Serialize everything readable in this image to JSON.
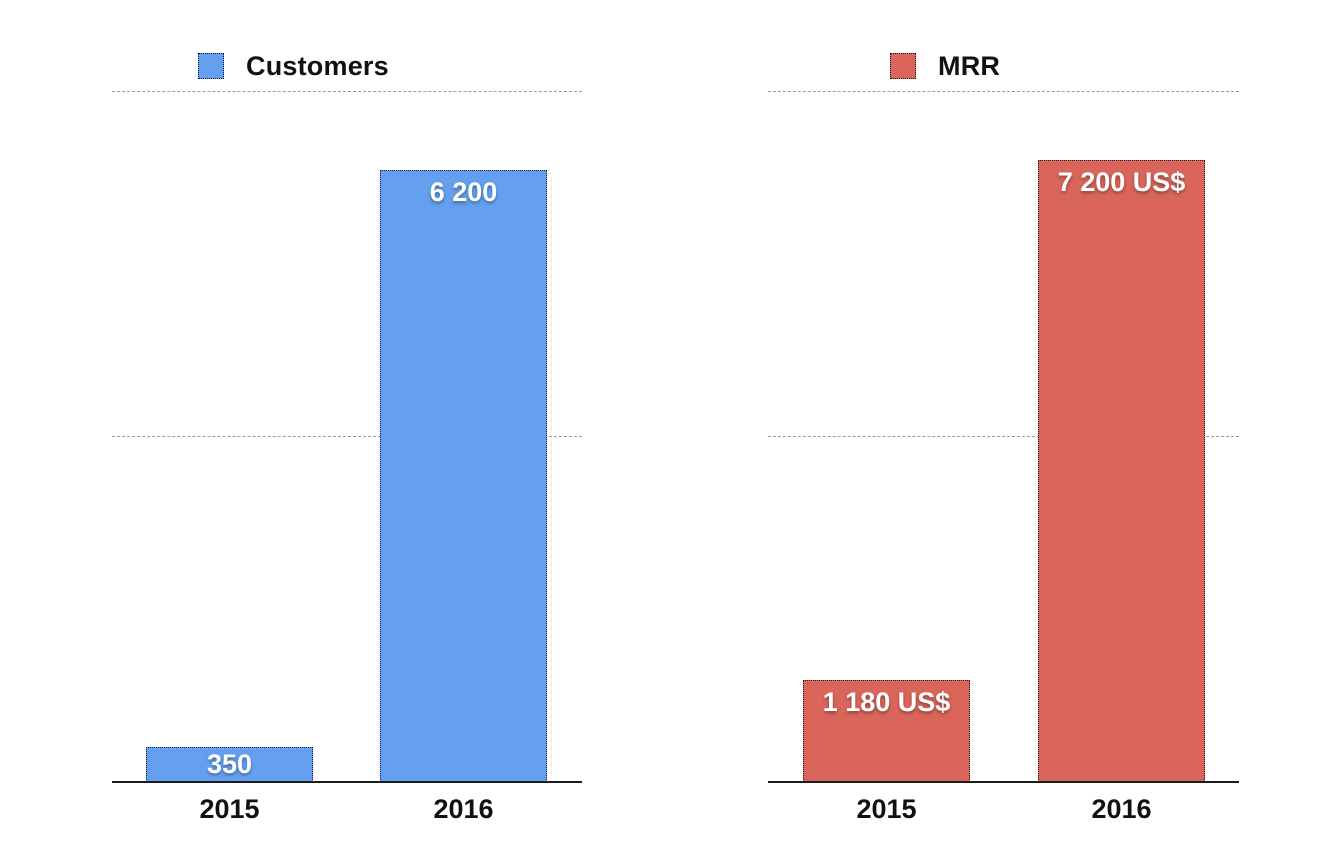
{
  "page": {
    "background": "#ffffff",
    "text_color": "#111111",
    "gridline_color": "#9b9b9b",
    "axis_color": "#1c1c1c"
  },
  "chart_data": [
    {
      "type": "bar",
      "title": "Customers",
      "categories": [
        "2015",
        "2016"
      ],
      "values": [
        350,
        6200
      ],
      "value_labels": [
        "350",
        "6 200"
      ],
      "bar_color": "#64A0EF",
      "ylim": [
        0,
        7000
      ],
      "gridlines": [
        3500,
        7000
      ],
      "grid": true,
      "legend": {
        "position": "top",
        "label": "Customers",
        "swatch_color": "#64A0EF"
      },
      "xlabel": "",
      "ylabel": ""
    },
    {
      "type": "bar",
      "title": "MRR",
      "categories": [
        "2015",
        "2016"
      ],
      "values": [
        1180,
        7200
      ],
      "value_labels": [
        "1 180 US$",
        "7 200 US$"
      ],
      "bar_color": "#D9655B",
      "ylim": [
        0,
        8000
      ],
      "gridlines": [
        4000,
        8000
      ],
      "grid": true,
      "legend": {
        "position": "top",
        "label": "MRR",
        "swatch_color": "#D9655B"
      },
      "xlabel": "",
      "ylabel": ""
    }
  ]
}
